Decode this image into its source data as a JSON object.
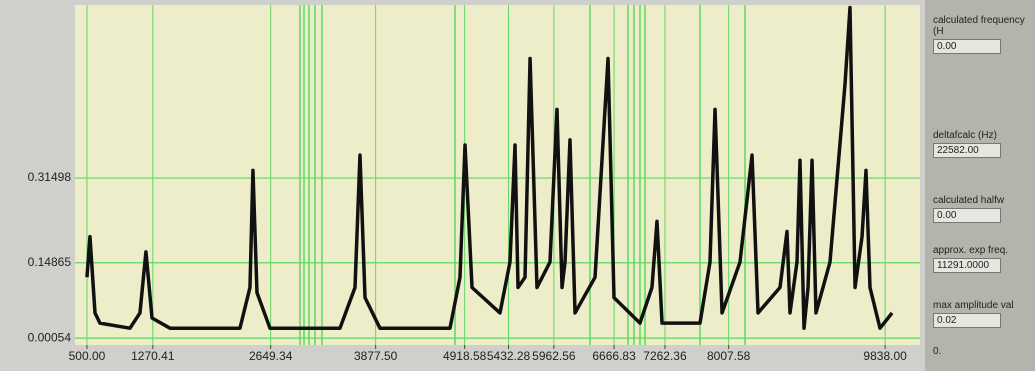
{
  "chart_data": {
    "type": "line",
    "xticks": [
      {
        "value": 500,
        "label": "500.00"
      },
      1270.41,
      2649.34,
      {
        "value": 3877.5,
        "label": "3877.50"
      },
      4918.58,
      5432.28,
      5962.56,
      6666.83,
      7262.36,
      8007.58,
      {
        "value": 9838,
        "label": "9838.00"
      }
    ],
    "yticks": [
      0.00054,
      0.14865,
      0.31498
    ],
    "xlim": [
      360,
      10246
    ],
    "ylim": [
      -0.013,
      0.655
    ],
    "grid": true,
    "series": [
      {
        "color": "#111111",
        "x": [
          500,
          535,
          594,
          652,
          1003,
          1120,
          1190,
          1261,
          1471,
          2290,
          2407,
          2442,
          2489,
          2641,
          3460,
          3636,
          3694,
          3753,
          3928,
          4747,
          4864,
          4923,
          5005,
          5332,
          5449,
          5508,
          5543,
          5625,
          5684,
          5765,
          5917,
          5999,
          6058,
          6093,
          6151,
          6210,
          6444,
          6596,
          6666,
          6970,
          7110,
          7169,
          7228,
          7672,
          7789,
          7848,
          7930,
          8140,
          8281,
          8351,
          8608,
          8690,
          8725,
          8807,
          8842,
          8889,
          8936,
          8983,
          9029,
          9193,
          9369,
          9427,
          9486,
          9568,
          9614,
          9661,
          9778,
          9919
        ],
        "values": [
          0.12,
          0.2,
          0.05,
          0.03,
          0.02,
          0.05,
          0.17,
          0.04,
          0.02,
          0.02,
          0.1,
          0.33,
          0.09,
          0.02,
          0.02,
          0.1,
          0.36,
          0.08,
          0.02,
          0.02,
          0.12,
          0.38,
          0.1,
          0.05,
          0.15,
          0.38,
          0.1,
          0.12,
          0.55,
          0.1,
          0.15,
          0.45,
          0.1,
          0.15,
          0.39,
          0.05,
          0.12,
          0.55,
          0.08,
          0.03,
          0.1,
          0.23,
          0.03,
          0.03,
          0.15,
          0.45,
          0.05,
          0.15,
          0.36,
          0.05,
          0.1,
          0.21,
          0.05,
          0.15,
          0.35,
          0.02,
          0.1,
          0.35,
          0.05,
          0.15,
          0.5,
          0.65,
          0.1,
          0.2,
          0.33,
          0.1,
          0.02,
          0.05
        ]
      }
    ]
  },
  "panel": {
    "fields": [
      {
        "label": "calculated frequency (H",
        "value": "0.00"
      },
      {
        "label": "deltafcalc (Hz)",
        "value": "22582.00"
      },
      {
        "label": "calculated halfw",
        "value": "0.00"
      },
      {
        "label": "approx. exp freq.",
        "value": "11291.0000"
      },
      {
        "label": "max amplitude val",
        "value": "0.02"
      }
    ],
    "scale_label": "0."
  }
}
